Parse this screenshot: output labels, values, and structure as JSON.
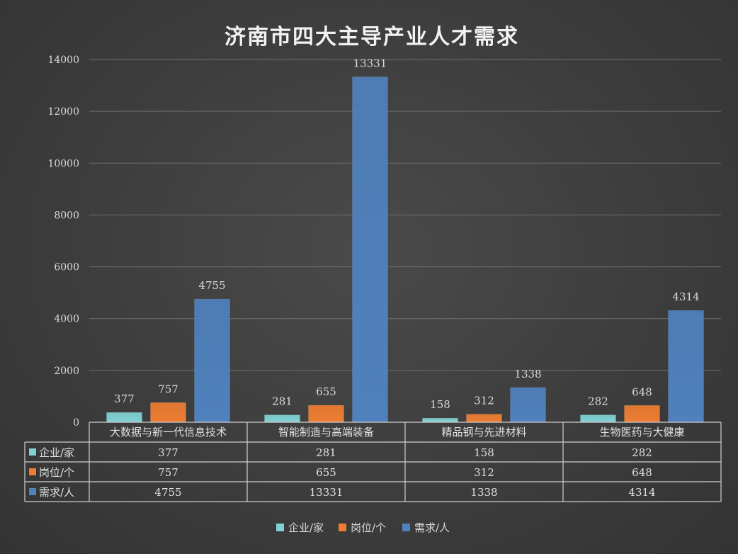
{
  "chart_data": {
    "type": "bar",
    "title": "济南市四大主导产业人才需求",
    "categories": [
      "大数据与新一代信息技术",
      "智能制造与高端装备",
      "精品钢与先进材料",
      "生物医药与大健康"
    ],
    "series": [
      {
        "name": "企业/家",
        "values": [
          377,
          281,
          158,
          282
        ],
        "color": "#7fd1d4"
      },
      {
        "name": "岗位/个",
        "values": [
          757,
          655,
          312,
          648
        ],
        "color": "#ed7d31"
      },
      {
        "name": "需求/人",
        "values": [
          4755,
          13331,
          1338,
          4314
        ],
        "color": "#4f81bd"
      }
    ],
    "ylim": [
      0,
      14000
    ],
    "yticks": [
      0,
      2000,
      4000,
      6000,
      8000,
      10000,
      12000,
      14000
    ],
    "grid": true,
    "legend": "bottom",
    "data_table": true
  }
}
